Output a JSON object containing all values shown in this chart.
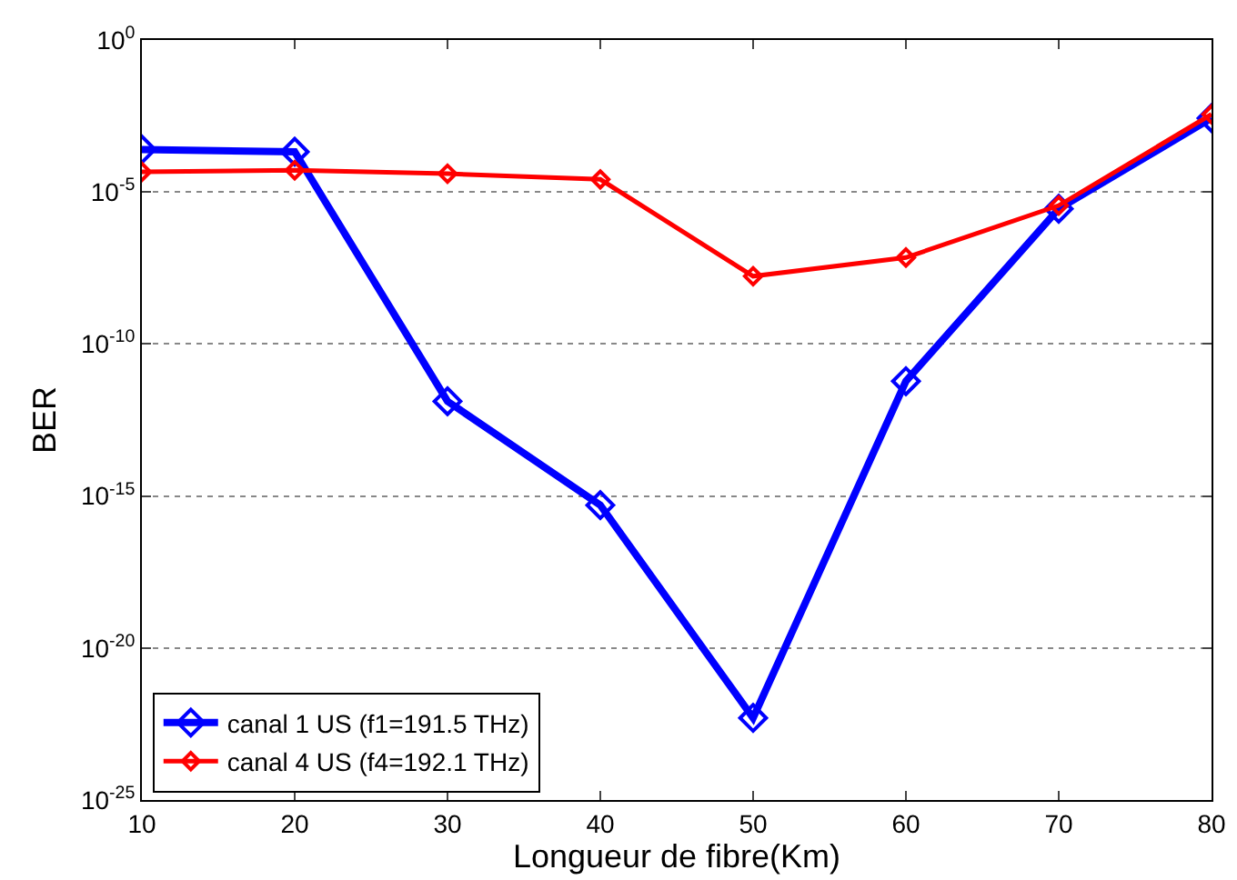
{
  "chart_data": {
    "type": "line",
    "xlabel": "Longueur de fibre(Km)",
    "ylabel": "BER",
    "x": [
      10,
      20,
      30,
      40,
      50,
      60,
      70,
      80
    ],
    "series": [
      {
        "name": "canal 1 US (f1=191.5 THz)",
        "color": "#0000ff",
        "values": [
          0.00025,
          0.00021,
          1.3e-12,
          5e-16,
          5e-23,
          6e-12,
          2.8e-06,
          0.0027
        ]
      },
      {
        "name": "canal 4 US (f4=192.1 THz)",
        "color": "#ff0000",
        "values": [
          4.6e-05,
          5.2e-05,
          4e-05,
          2.6e-05,
          1.7e-08,
          7e-08,
          3.6e-06,
          0.0036
        ]
      }
    ],
    "xlim": [
      10,
      80
    ],
    "xticks": [
      10,
      20,
      30,
      40,
      50,
      60,
      70,
      80
    ],
    "ylim": [
      1e-25,
      1
    ],
    "yticks": [
      {
        "value": 1e-25,
        "label": "10$^{-25}$"
      },
      {
        "value": 1e-20,
        "label": "10$^{-20}$"
      },
      {
        "value": 1e-15,
        "label": "10$^{-15}$"
      },
      {
        "value": 1e-10,
        "label": "10$^{-10}$"
      },
      {
        "value": 1e-05,
        "label": "10$^{-5}$"
      },
      {
        "value": 1,
        "label": "10$^{0}$"
      }
    ],
    "log": "y",
    "grid": "y",
    "legend": "bottom left",
    "marker": "diamond",
    "line_style": "solid"
  }
}
